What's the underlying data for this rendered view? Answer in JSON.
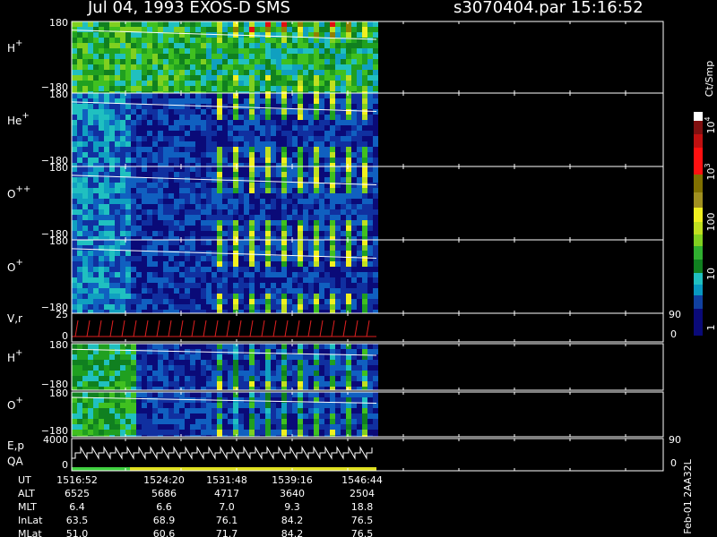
{
  "header": {
    "title": "Jul 04, 1993   EXOS-D SMS",
    "file": "s3070404.par  15:16:52"
  },
  "panels": [
    {
      "label": "H",
      "sup": "+",
      "ticks": [
        "180",
        "−180"
      ]
    },
    {
      "label": "He",
      "sup": "+",
      "ticks": [
        "180",
        "−180"
      ]
    },
    {
      "label": "O",
      "sup": "++",
      "ticks": [
        "180",
        "−180"
      ]
    },
    {
      "label": "O",
      "sup": "+",
      "ticks": [
        "180",
        "−180"
      ]
    },
    {
      "label": "V,r",
      "ticks": [
        "25",
        "0"
      ],
      "right_ticks": [
        "90",
        "0"
      ]
    },
    {
      "label": "H",
      "sup": "+",
      "ticks": [
        "180",
        "−180"
      ]
    },
    {
      "label": "O",
      "sup": "+",
      "ticks": [
        "180",
        "−180"
      ]
    },
    {
      "label": "E,p",
      "label2": "QA",
      "ticks": [
        "4000",
        "0"
      ],
      "right_ticks": [
        "90",
        "0"
      ]
    }
  ],
  "colorbar": {
    "unit": "Ct/Smp",
    "labels": [
      {
        "text": "10",
        "exp": "4"
      },
      {
        "text": "10",
        "exp": "3"
      },
      {
        "text": "100"
      },
      {
        "text": "10"
      },
      {
        "text": "1"
      }
    ]
  },
  "table": {
    "rows": [
      [
        "UT",
        "1516:52",
        "1524:20",
        "1531:48",
        "1539:16",
        "1546:44"
      ],
      [
        "ALT",
        "6525",
        "5686",
        "4717",
        "3640",
        "2504"
      ],
      [
        "MLT",
        "6.4",
        "6.6",
        "7.0",
        "9.3",
        "18.8"
      ],
      [
        "InLat",
        "63.5",
        "68.9",
        "76.1",
        "84.2",
        "76.5"
      ],
      [
        "MLat",
        "51.0",
        "60.6",
        "71.7",
        "84.2",
        "76.5"
      ]
    ]
  },
  "footer": "Feb-01 2AA32L"
}
